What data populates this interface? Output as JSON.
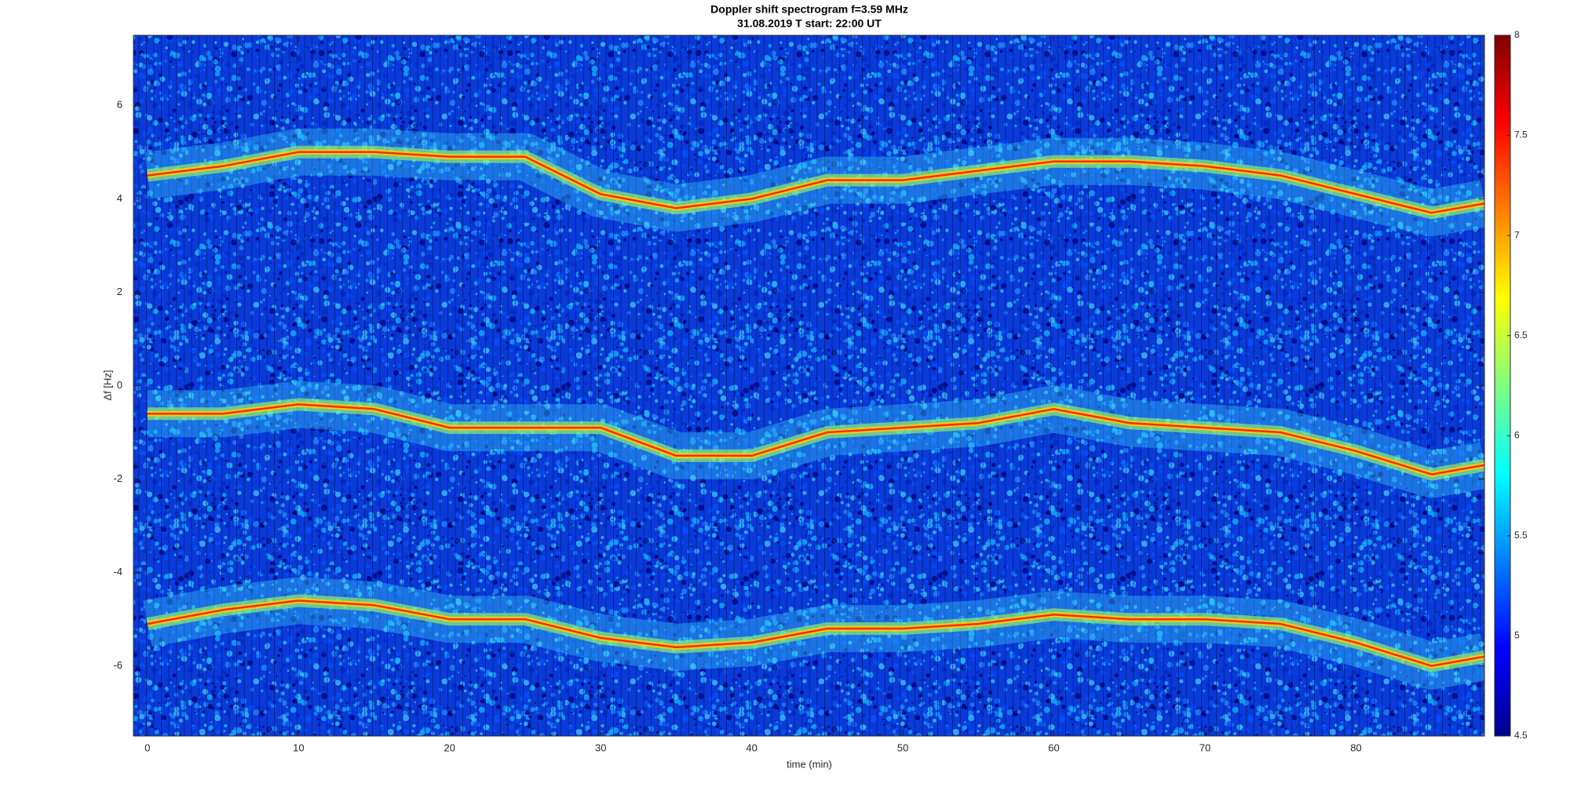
{
  "chart_data": {
    "type": "spectrogram",
    "title": "Doppler shift spectrogram f=3.59 MHz",
    "subtitle": "31.08.2019   T start: 22:00 UT",
    "x_label": "time (min)",
    "y_label": "Δf [Hz]",
    "x": [
      0,
      5,
      10,
      15,
      20,
      25,
      30,
      35,
      40,
      45,
      50,
      55,
      60,
      65,
      70,
      75,
      80,
      85,
      88.5
    ],
    "series": [
      {
        "color": "#ff2a00",
        "values": [
          4.5,
          4.7,
          5.0,
          5.0,
          4.9,
          4.9,
          4.1,
          3.8,
          4.0,
          4.4,
          4.4,
          4.6,
          4.8,
          4.8,
          4.7,
          4.5,
          4.1,
          3.7,
          3.9
        ]
      },
      {
        "color": "#ff2a00",
        "values": [
          -0.6,
          -0.6,
          -0.4,
          -0.5,
          -0.9,
          -0.9,
          -0.9,
          -1.5,
          -1.5,
          -1.0,
          -0.9,
          -0.8,
          -0.5,
          -0.8,
          -0.9,
          -1.0,
          -1.4,
          -1.9,
          -1.7
        ]
      },
      {
        "color": "#ff2a00",
        "values": [
          -5.1,
          -4.8,
          -4.6,
          -4.7,
          -5.0,
          -5.0,
          -5.4,
          -5.6,
          -5.5,
          -5.2,
          -5.2,
          -5.1,
          -4.9,
          -5.0,
          -5.0,
          -5.1,
          -5.5,
          -6.0,
          -5.8
        ]
      }
    ],
    "xlim": [
      -0.93,
      88.5
    ],
    "ylim": [
      -7.5,
      7.5
    ],
    "xticks": [
      0,
      10,
      20,
      30,
      40,
      50,
      60,
      70,
      80
    ],
    "yticks": [
      -6,
      -4,
      -2,
      0,
      2,
      4,
      6
    ],
    "colorbar": {
      "colormap": "jet",
      "clim": [
        4.5,
        8
      ],
      "ticks": [
        4.5,
        5,
        5.5,
        6,
        6.5,
        7,
        7.5,
        8
      ]
    }
  }
}
